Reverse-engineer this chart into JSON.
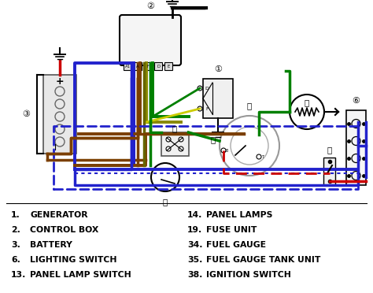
{
  "bg_color": "#ffffff",
  "legend_left": [
    [
      "1.",
      "GENERATOR"
    ],
    [
      "2.",
      "CONTROL BOX"
    ],
    [
      "3.",
      "BATTERY"
    ],
    [
      "6.",
      "LIGHTING SWITCH"
    ],
    [
      "13.",
      "PANEL LAMP SWITCH"
    ]
  ],
  "legend_right": [
    [
      "14.",
      "PANEL LAMPS"
    ],
    [
      "19.",
      "FUSE UNIT"
    ],
    [
      "34.",
      "FUEL GAUGE"
    ],
    [
      "35.",
      "FUEL GAUGE TANK UNIT"
    ],
    [
      "38.",
      "IGNITION SWITCH"
    ]
  ],
  "wire_colors": {
    "blue": "#2222cc",
    "brown": "#7B3F00",
    "green": "#008000",
    "yellow": "#cccc00",
    "red": "#cc0000",
    "black": "#000000",
    "gray": "#888888",
    "darkgreen": "#006600"
  }
}
